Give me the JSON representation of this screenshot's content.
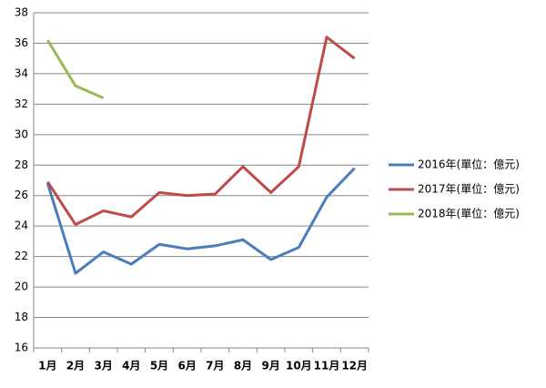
{
  "chart_data": {
    "type": "line",
    "categories": [
      "1月",
      "2月",
      "3月",
      "4月",
      "5月",
      "6月",
      "7月",
      "8月",
      "9月",
      "10月",
      "11月",
      "12月"
    ],
    "series": [
      {
        "name": "2016年(單位：億元)",
        "color": "#4a7ebb",
        "values": [
          26.8,
          20.9,
          22.3,
          21.5,
          22.8,
          22.5,
          22.7,
          23.1,
          21.8,
          22.6,
          25.9,
          27.8
        ]
      },
      {
        "name": "2017年(單位：億元)",
        "color": "#be4b48",
        "values": [
          26.9,
          24.1,
          25.0,
          24.6,
          26.2,
          26.0,
          26.1,
          27.9,
          26.2,
          27.9,
          36.4,
          35.0
        ]
      },
      {
        "name": "2018年(單位：億元)",
        "color": "#98b954",
        "values": [
          36.2,
          33.2,
          32.4,
          null,
          null,
          null,
          null,
          null,
          null,
          null,
          null,
          null
        ]
      }
    ],
    "ylim": [
      16,
      38
    ],
    "yticks": [
      16,
      18,
      20,
      22,
      24,
      26,
      28,
      30,
      32,
      34,
      36,
      38
    ],
    "grid": true,
    "legend": "right"
  }
}
